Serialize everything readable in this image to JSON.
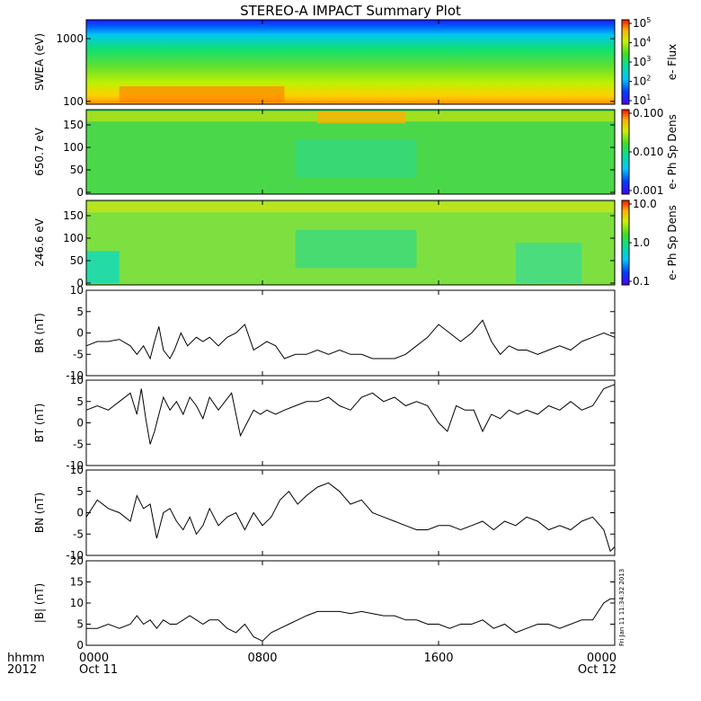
{
  "title": "STEREO-A IMPACT Summary Plot",
  "colors": {
    "axis": "#000000",
    "line": "#000000",
    "bg": "#ffffff"
  },
  "corner": {
    "line1": "hhmm",
    "line2": "2012"
  },
  "stamp": "Fri Jan 11 11:34:32 2013",
  "chart_data": [
    {
      "id": "swea",
      "type": "heatmap",
      "ylabel": "SWEA (eV)",
      "ylog": true,
      "ylim": [
        90,
        2000
      ],
      "yticks": [
        "100",
        "1000"
      ],
      "colorbar": {
        "label": "e- Flux",
        "log": true,
        "range": [
          1,
          100000
        ],
        "ticks": [
          "10^5",
          "10^4",
          "10^3",
          "10^2",
          "10^1"
        ]
      }
    },
    {
      "id": "pad650",
      "type": "heatmap",
      "ylabel": "650.7 eV",
      "ylim": [
        0,
        180
      ],
      "yticks": [
        "0",
        "50",
        "100",
        "150"
      ],
      "colorbar": {
        "label": "e- Ph Sp Dens",
        "log": true,
        "range": [
          0.001,
          0.1
        ],
        "ticks": [
          "0.100",
          "0.010",
          "0.001"
        ]
      }
    },
    {
      "id": "pad246",
      "type": "heatmap",
      "ylabel": "246.6 eV",
      "ylim": [
        0,
        180
      ],
      "yticks": [
        "0",
        "50",
        "100",
        "150"
      ],
      "colorbar": {
        "label": "e- Ph Sp Dens",
        "log": true,
        "range": [
          0.1,
          10
        ],
        "ticks": [
          "10.0",
          "1.0",
          "0.1"
        ]
      }
    },
    {
      "id": "br",
      "type": "line",
      "ylabel": "BR (nT)",
      "ylim": [
        -10,
        10
      ],
      "yticks": [
        "-10",
        "-5",
        "0",
        "5",
        "10"
      ],
      "x": [
        0,
        0.5,
        1,
        1.5,
        2,
        2.3,
        2.6,
        2.9,
        3.1,
        3.3,
        3.5,
        3.8,
        4.0,
        4.3,
        4.6,
        5.0,
        5.3,
        5.6,
        6.0,
        6.4,
        6.8,
        7.2,
        7.6,
        7.9,
        8.2,
        8.6,
        9.0,
        9.5,
        10,
        10.5,
        11,
        11.5,
        12,
        12.5,
        13,
        13.5,
        14,
        14.5,
        15,
        15.5,
        16,
        16.5,
        17,
        17.5,
        18,
        18.4,
        18.8,
        19.2,
        19.6,
        20,
        20.5,
        21,
        21.5,
        22,
        22.5,
        23,
        23.5,
        24
      ],
      "y": [
        -3,
        -2,
        -2,
        -1.5,
        -3,
        -5,
        -3,
        -6,
        -2,
        1.5,
        -4,
        -6,
        -4,
        0,
        -3,
        -1,
        -2,
        -1,
        -3,
        -1,
        0,
        2,
        -4,
        -3,
        -2,
        -3,
        -6,
        -5,
        -5,
        -4,
        -5,
        -4,
        -5,
        -5,
        -6,
        -6,
        -6,
        -5,
        -3,
        -1,
        2,
        0,
        -2,
        0,
        3,
        -2,
        -5,
        -3,
        -4,
        -4,
        -5,
        -4,
        -3,
        -4,
        -2,
        -1,
        0,
        -1
      ]
    },
    {
      "id": "bt",
      "type": "line",
      "ylabel": "BT (nT)",
      "ylim": [
        -10,
        10
      ],
      "yticks": [
        "-10",
        "-5",
        "0",
        "5",
        "10"
      ],
      "x": [
        0,
        0.5,
        1,
        1.5,
        2,
        2.3,
        2.5,
        2.7,
        2.9,
        3.1,
        3.3,
        3.5,
        3.8,
        4.1,
        4.4,
        4.7,
        5.0,
        5.3,
        5.6,
        6.0,
        6.3,
        6.6,
        7.0,
        7.3,
        7.6,
        7.9,
        8.2,
        8.6,
        9.0,
        9.5,
        10,
        10.5,
        11,
        11.5,
        12,
        12.5,
        13,
        13.5,
        14,
        14.5,
        15,
        15.5,
        16,
        16.4,
        16.8,
        17.2,
        17.6,
        18,
        18.4,
        18.8,
        19.2,
        19.6,
        20,
        20.5,
        21,
        21.5,
        22,
        22.5,
        23,
        23.5,
        24
      ],
      "y": [
        3,
        4,
        3,
        5,
        7,
        2,
        8,
        1,
        -5,
        -2,
        2,
        6,
        3,
        5,
        2,
        6,
        4,
        1,
        6,
        3,
        5,
        7,
        -3,
        0,
        3,
        2,
        3,
        2,
        3,
        4,
        5,
        5,
        6,
        4,
        3,
        6,
        7,
        5,
        6,
        4,
        5,
        4,
        0,
        -2,
        4,
        3,
        3,
        -2,
        2,
        1,
        3,
        2,
        3,
        2,
        4,
        3,
        5,
        3,
        4,
        8,
        9
      ]
    },
    {
      "id": "bn",
      "type": "line",
      "ylabel": "BN (nT)",
      "ylim": [
        -10,
        10
      ],
      "yticks": [
        "-10",
        "-5",
        "0",
        "5",
        "10"
      ],
      "x": [
        0,
        0.5,
        1,
        1.5,
        2,
        2.3,
        2.6,
        2.9,
        3.2,
        3.5,
        3.8,
        4.1,
        4.4,
        4.7,
        5.0,
        5.3,
        5.6,
        6.0,
        6.4,
        6.8,
        7.2,
        7.6,
        8.0,
        8.4,
        8.8,
        9.2,
        9.6,
        10,
        10.5,
        11,
        11.5,
        12,
        12.5,
        13,
        13.5,
        14,
        14.5,
        15,
        15.5,
        16,
        16.5,
        17,
        17.5,
        18,
        18.5,
        19,
        19.5,
        20,
        20.5,
        21,
        21.5,
        22,
        22.5,
        23,
        23.5,
        23.8,
        24
      ],
      "y": [
        -1,
        3,
        1,
        0,
        -2,
        4,
        1,
        2,
        -6,
        0,
        1,
        -2,
        -4,
        -1,
        -5,
        -3,
        1,
        -3,
        -1,
        0,
        -4,
        0,
        -3,
        -1,
        3,
        5,
        2,
        4,
        6,
        7,
        5,
        2,
        3,
        0,
        -1,
        -2,
        -3,
        -4,
        -4,
        -3,
        -3,
        -4,
        -3,
        -2,
        -4,
        -2,
        -3,
        -1,
        -2,
        -4,
        -3,
        -4,
        -2,
        -1,
        -4,
        -9,
        -8
      ]
    },
    {
      "id": "bmag",
      "type": "line",
      "ylabel": "|B| (nT)",
      "ylim": [
        0,
        20
      ],
      "yticks": [
        "0",
        "5",
        "10",
        "15",
        "20"
      ],
      "x": [
        0,
        0.5,
        1,
        1.5,
        2,
        2.3,
        2.6,
        2.9,
        3.2,
        3.5,
        3.8,
        4.1,
        4.4,
        4.7,
        5.0,
        5.3,
        5.6,
        6.0,
        6.4,
        6.8,
        7.2,
        7.6,
        8.0,
        8.4,
        8.8,
        9.2,
        9.6,
        10,
        10.5,
        11,
        11.5,
        12,
        12.5,
        13,
        13.5,
        14,
        14.5,
        15,
        15.5,
        16,
        16.5,
        17,
        17.5,
        18,
        18.5,
        19,
        19.5,
        20,
        20.5,
        21,
        21.5,
        22,
        22.5,
        23,
        23.5,
        23.8,
        24
      ],
      "y": [
        4,
        4,
        5,
        4,
        5,
        7,
        5,
        6,
        4,
        6,
        5,
        5,
        6,
        7,
        6,
        5,
        6,
        6,
        4,
        3,
        5,
        2,
        1,
        3,
        4,
        5,
        6,
        7,
        8,
        8,
        8,
        7.5,
        8,
        7.5,
        7,
        7,
        6,
        6,
        5,
        5,
        4,
        5,
        5,
        6,
        4,
        5,
        3,
        4,
        5,
        5,
        4,
        5,
        6,
        6,
        10,
        11,
        11
      ]
    }
  ],
  "x_axis": {
    "ticks": [
      "0000",
      "0800",
      "1600",
      "0000"
    ],
    "tick_hours": [
      0,
      8,
      16,
      24
    ],
    "sublabels": [
      "Oct 11",
      "",
      "",
      "Oct 12"
    ]
  }
}
